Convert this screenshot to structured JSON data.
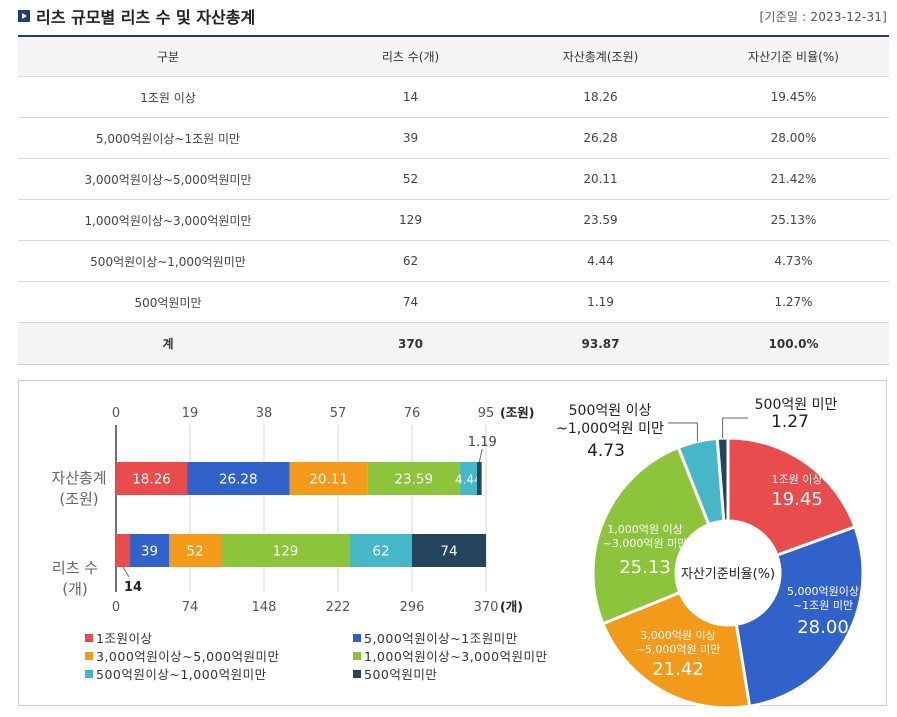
{
  "header": {
    "title": "리츠 규모별 리츠 수 및 자산총계",
    "base_date": "[기준일 : 2023-12-31]"
  },
  "table": {
    "columns": [
      "구분",
      "리츠 수(개)",
      "자산총계(조원)",
      "자산기준 비율(%)"
    ],
    "rows": [
      [
        "1조원 이상",
        "14",
        "18.26",
        "19.45%"
      ],
      [
        "5,000억원이상~1조원 미만",
        "39",
        "26.28",
        "28.00%"
      ],
      [
        "3,000억원이상~5,000억원미만",
        "52",
        "20.11",
        "21.42%"
      ],
      [
        "1,000억원이상~3,000억원미만",
        "129",
        "23.59",
        "25.13%"
      ],
      [
        "500억원이상~1,000억원미만",
        "62",
        "4.44",
        "4.73%"
      ],
      [
        "500억원미만",
        "74",
        "1.19",
        "1.27%"
      ]
    ],
    "total": [
      "계",
      "370",
      "93.87",
      "100.0%"
    ]
  },
  "chart_data": [
    {
      "type": "bar",
      "orientation": "horizontal",
      "stacked": true,
      "categories": [
        "자산총계\n(조원)",
        "리츠 수\n(개)"
      ],
      "series": [
        {
          "name": "1조원이상",
          "values": [
            18.26,
            14
          ],
          "color": "#e84c4c"
        },
        {
          "name": "5,000억원이상~1조원미만",
          "values": [
            26.28,
            39
          ],
          "color": "#3062c9"
        },
        {
          "name": "3,000억원이상~5,000억원미만",
          "values": [
            20.11,
            52
          ],
          "color": "#f49a1a"
        },
        {
          "name": "1,000억원이상~3,000억원미만",
          "values": [
            23.59,
            129
          ],
          "color": "#8cc43c"
        },
        {
          "name": "500억원이상~1,000억원미만",
          "values": [
            4.44,
            62
          ],
          "color": "#45b7c7"
        },
        {
          "name": "500억원미만",
          "values": [
            1.19,
            74
          ],
          "color": "#24435d"
        }
      ],
      "axis_top": {
        "ticks": [
          "0",
          "19",
          "38",
          "57",
          "76",
          "95"
        ],
        "unit": "(조원)",
        "range": [
          0,
          95
        ]
      },
      "axis_bottom": {
        "ticks": [
          "0",
          "74",
          "148",
          "222",
          "296",
          "370"
        ],
        "unit": "(개)",
        "range": [
          0,
          370
        ]
      },
      "bar_labels": [
        [
          "18.26",
          "26.28",
          "20.11",
          "23.59",
          "4.44",
          "1.19"
        ],
        [
          "14",
          "39",
          "52",
          "129",
          "62",
          "74"
        ]
      ],
      "legend_position": "bottom"
    },
    {
      "type": "pie",
      "variant": "donut",
      "center_label": "자산기준비율(%)",
      "slices": [
        {
          "label": "1조원 이상",
          "value": 19.45,
          "value_label": "19.45",
          "color": "#e84c4c"
        },
        {
          "label": "5,000억원이상\n~1조원 미만",
          "value": 28.0,
          "value_label": "28.00",
          "color": "#3062c9"
        },
        {
          "label": "3,000억원 이상\n~5,000억원 미만",
          "value": 21.42,
          "value_label": "21.42",
          "color": "#f49a1a"
        },
        {
          "label": "1,000억원 이상\n~3,000억원 미만",
          "value": 25.13,
          "value_label": "25.13",
          "color": "#8cc43c"
        },
        {
          "label": "500억원 이상\n~1,000억원 미만",
          "value": 4.73,
          "value_label": "4.73",
          "color": "#45b7c7"
        },
        {
          "label": "500억원 미만",
          "value": 1.27,
          "value_label": "1.27",
          "color": "#24435d"
        }
      ]
    }
  ]
}
